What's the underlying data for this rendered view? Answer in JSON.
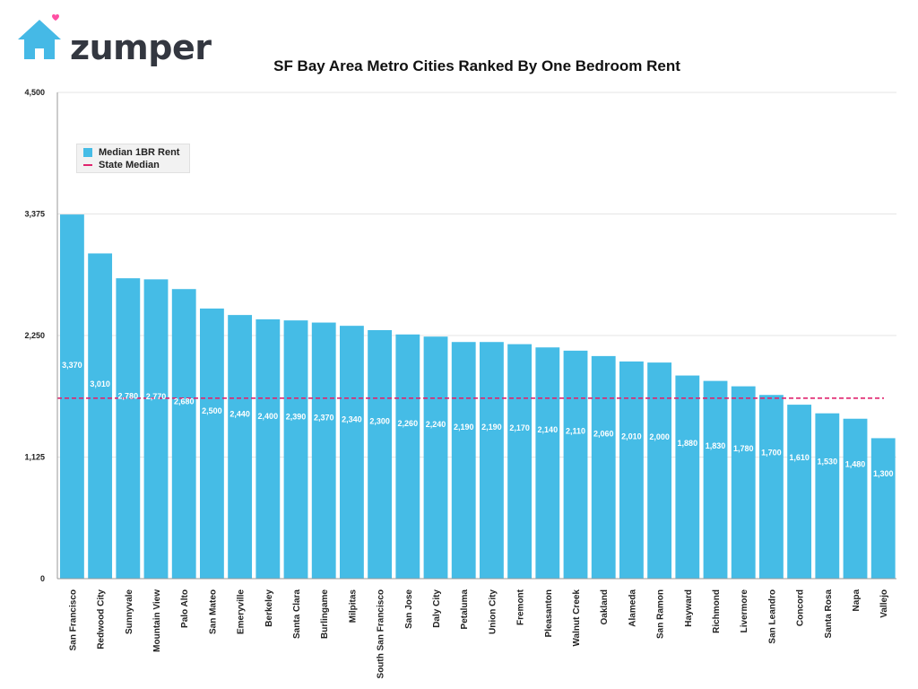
{
  "brand": {
    "name": "zumper",
    "icon": "house-heart-icon",
    "icon_color": "#45b9e6",
    "heart_color": "#ff4fa3"
  },
  "colors": {
    "bar": "#45bce6",
    "state_line": "#e0246e",
    "grid": "#e6e6e6",
    "axis": "#999999"
  },
  "chart_data": {
    "type": "bar",
    "title": "SF Bay Area Metro Cities Ranked By One Bedroom Rent",
    "xlabel": "",
    "ylabel": "",
    "ylim": [
      0,
      4500
    ],
    "yticks": [
      0,
      1125,
      2250,
      3375,
      4500
    ],
    "ytick_labels": [
      "0",
      "1,125",
      "2,250",
      "3,375",
      "4,500"
    ],
    "grid": true,
    "legend_position": "top-left",
    "categories": [
      "San Francisco",
      "Redwood City",
      "Sunnyvale",
      "Mountain View",
      "Palo Alto",
      "San Mateo",
      "Emeryville",
      "Berkeley",
      "Santa Clara",
      "Burlingame",
      "Milpitas",
      "South San Francisco",
      "San Jose",
      "Daly City",
      "Petaluma",
      "Union City",
      "Fremont",
      "Pleasanton",
      "Walnut Creek",
      "Oakland",
      "Alameda",
      "San Ramon",
      "Hayward",
      "Richmond",
      "Livermore",
      "San Leandro",
      "Concord",
      "Santa Rosa",
      "Napa",
      "Vallejo"
    ],
    "series": [
      {
        "name": "Median 1BR Rent",
        "values": [
          3370,
          3010,
          2780,
          2770,
          2680,
          2500,
          2440,
          2400,
          2390,
          2370,
          2340,
          2300,
          2260,
          2240,
          2190,
          2190,
          2170,
          2140,
          2110,
          2060,
          2010,
          2000,
          1880,
          1830,
          1780,
          1700,
          1610,
          1530,
          1480,
          1300
        ],
        "labels": [
          "3,370",
          "3,010",
          "2,780",
          "2,770",
          "2,680",
          "2,500",
          "2,440",
          "2,400",
          "2,390",
          "2,370",
          "2,340",
          "2,300",
          "2,260",
          "2,240",
          "2,190",
          "2,190",
          "2,170",
          "2,140",
          "2,110",
          "2,060",
          "2,010",
          "2,000",
          "1,880",
          "1,830",
          "1,780",
          "1,700",
          "1,610",
          "1,530",
          "1,480",
          "1,300"
        ]
      }
    ],
    "reference_line": {
      "name": "State Median",
      "value": 1670
    }
  }
}
